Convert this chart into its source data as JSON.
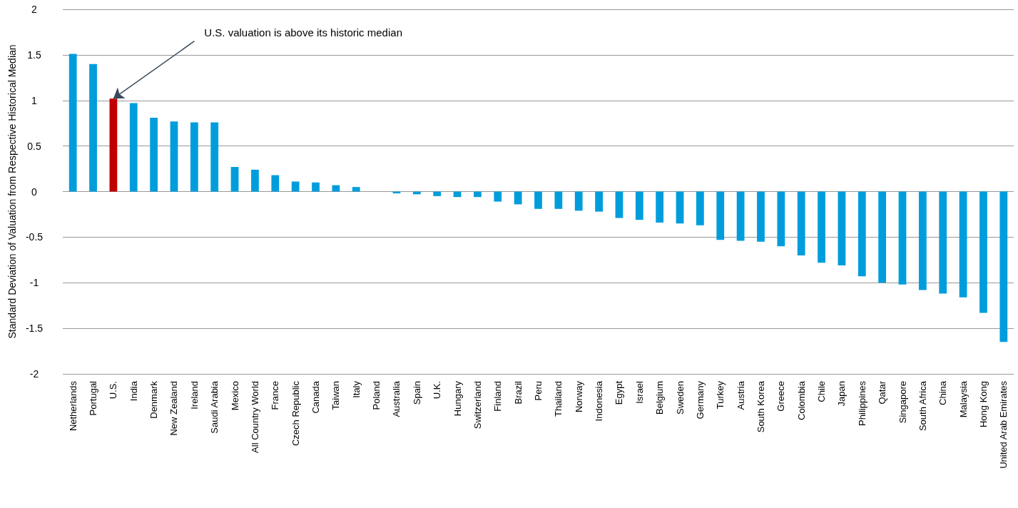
{
  "chart_data": {
    "type": "bar",
    "ylabel": "Standard Deviation of Valuation from Respective Historical Median",
    "categories": [
      "Netherlands",
      "Portugal",
      "U.S.",
      "India",
      "Denmark",
      "New Zealand",
      "Ireland",
      "Saudi Arabia",
      "Mexico",
      "All Country World",
      "France",
      "Czech Republic",
      "Canada",
      "Taiwan",
      "Italy",
      "Poland",
      "Australia",
      "Spain",
      "U.K.",
      "Hungary",
      "Switzerland",
      "Finland",
      "Brazil",
      "Peru",
      "Thailand",
      "Norway",
      "Indonesia",
      "Egypt",
      "Israel",
      "Belgium",
      "Sweden",
      "Germany",
      "Turkey",
      "Austria",
      "South Korea",
      "Greece",
      "Colombia",
      "Chile",
      "Japan",
      "Philippines",
      "Qatar",
      "Singapore",
      "South Africa",
      "China",
      "Malaysia",
      "Hong Kong",
      "United Arab Emirates"
    ],
    "values": [
      1.51,
      1.4,
      1.02,
      0.97,
      0.81,
      0.77,
      0.76,
      0.76,
      0.27,
      0.24,
      0.18,
      0.11,
      0.1,
      0.07,
      0.05,
      0,
      -0.02,
      -0.03,
      -0.05,
      -0.06,
      -0.06,
      -0.11,
      -0.14,
      -0.19,
      -0.19,
      -0.21,
      -0.22,
      -0.29,
      -0.31,
      -0.34,
      -0.35,
      -0.37,
      -0.53,
      -0.54,
      -0.55,
      -0.6,
      -0.7,
      -0.78,
      -0.81,
      -0.93,
      -1,
      -1.02,
      -1.08,
      -1.12,
      -1.16,
      -1.33,
      -1.65
    ],
    "colors": [
      "#009ddc",
      "#009ddc",
      "#c00000",
      "#009ddc",
      "#009ddc",
      "#009ddc",
      "#009ddc",
      "#009ddc",
      "#009ddc",
      "#009ddc",
      "#009ddc",
      "#009ddc",
      "#009ddc",
      "#009ddc",
      "#009ddc",
      "#009ddc",
      "#009ddc",
      "#009ddc",
      "#009ddc",
      "#009ddc",
      "#009ddc",
      "#009ddc",
      "#009ddc",
      "#009ddc",
      "#009ddc",
      "#009ddc",
      "#009ddc",
      "#009ddc",
      "#009ddc",
      "#009ddc",
      "#009ddc",
      "#009ddc",
      "#009ddc",
      "#009ddc",
      "#009ddc",
      "#009ddc",
      "#009ddc",
      "#009ddc",
      "#009ddc",
      "#009ddc",
      "#009ddc",
      "#009ddc",
      "#009ddc",
      "#009ddc",
      "#009ddc",
      "#009ddc",
      "#009ddc"
    ],
    "ylim": [
      -2,
      2
    ],
    "yticks": [
      -2,
      -1.5,
      -1,
      -0.5,
      0,
      0.5,
      1,
      1.5,
      2
    ],
    "grid": "y",
    "annotations": [
      {
        "text": "U.S. valuation is above its historic median",
        "x": "U.S.",
        "y": 1.02
      }
    ]
  }
}
